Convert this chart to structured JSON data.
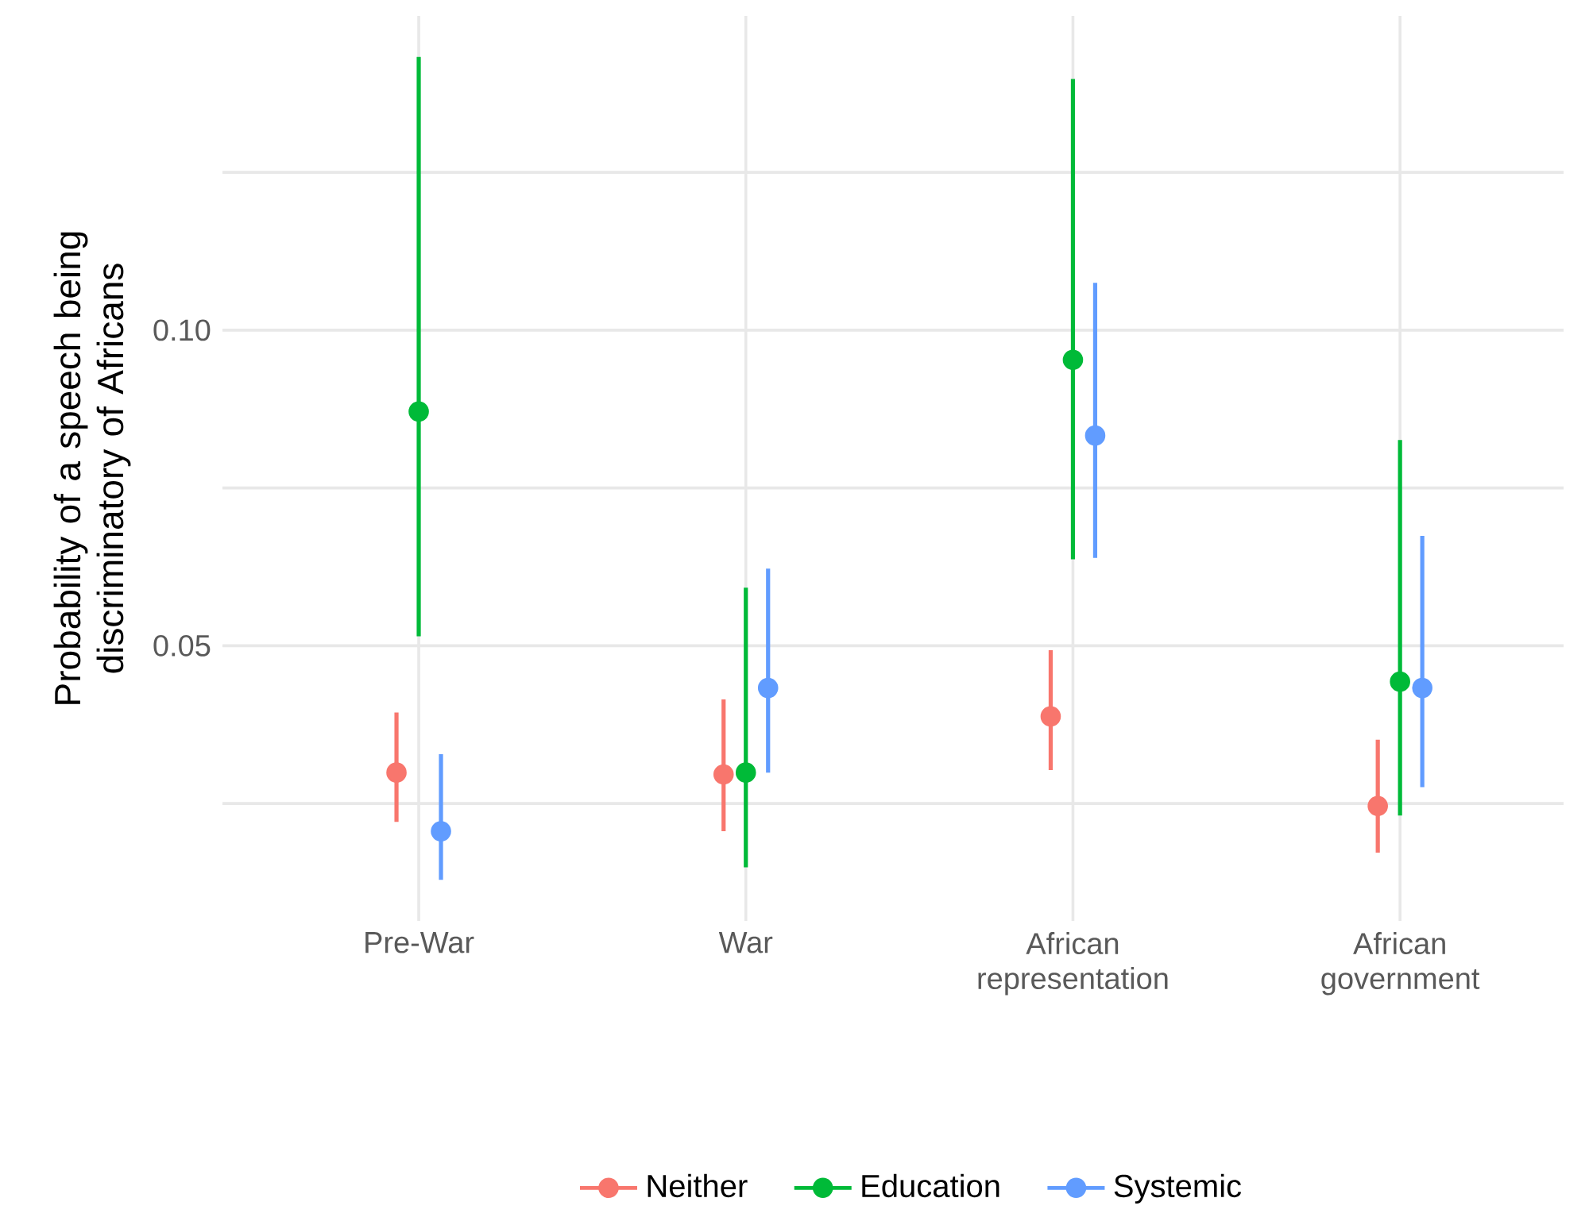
{
  "chart_data": {
    "type": "scatter",
    "ylabel": "Probability of a speech being discriminatory of Africans",
    "categories": [
      "Pre-War",
      "War",
      "African representation",
      "African government"
    ],
    "series": [
      {
        "name": "Neither",
        "color": "#f8766d",
        "values": [
          0.0299,
          0.0296,
          0.0388,
          0.0246
        ],
        "errors": [
          [
            0.0221,
            0.0394
          ],
          [
            0.0206,
            0.0415
          ],
          [
            0.0303,
            0.0493
          ],
          [
            0.0172,
            0.0351
          ]
        ]
      },
      {
        "name": "Education",
        "color": "#00ba38",
        "values": [
          0.0871,
          0.0299,
          0.0953,
          0.0443
        ],
        "errors": [
          [
            0.0515,
            0.1433
          ],
          [
            0.0149,
            0.0592
          ],
          [
            0.0637,
            0.1398
          ],
          [
            0.0231,
            0.0826
          ]
        ]
      },
      {
        "name": "Systemic",
        "color": "#619cff",
        "values": [
          0.0206,
          0.0433,
          0.0833,
          0.0433
        ],
        "errors": [
          [
            0.0129,
            0.0328
          ],
          [
            0.0299,
            0.0622
          ],
          [
            0.0639,
            0.1075
          ],
          [
            0.0276,
            0.0674
          ]
        ]
      }
    ],
    "ylim": [
      0.0064,
      0.1498
    ],
    "yticks": [
      {
        "value": 0.025,
        "label": null
      },
      0.05,
      {
        "value": 0.075,
        "label": null
      },
      {
        "value": 0.1,
        "label": "0.10"
      },
      {
        "value": 0.125,
        "label": null
      }
    ],
    "grid": true,
    "legend": "bottom"
  }
}
